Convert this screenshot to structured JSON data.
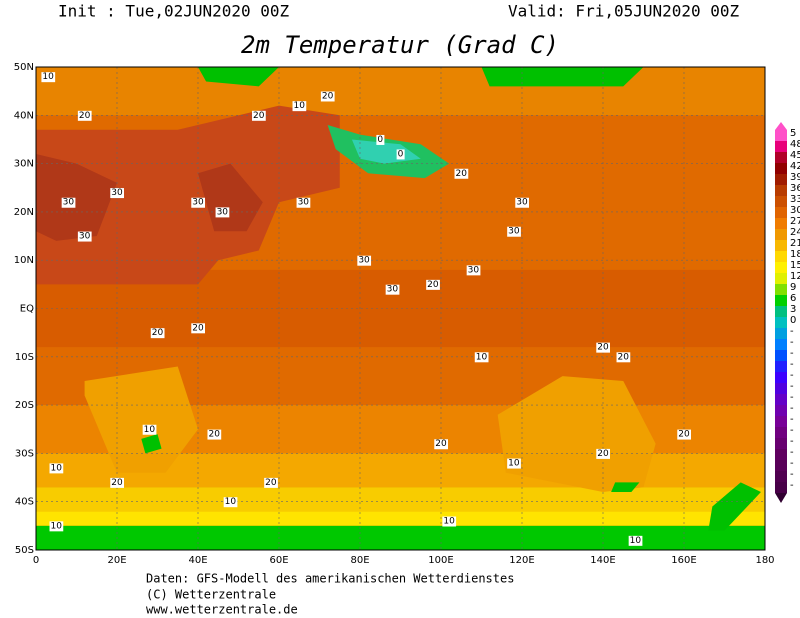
{
  "header": {
    "init": "Init : Tue,02JUN2020 00Z",
    "valid": "Valid: Fri,05JUN2020 00Z",
    "title": "2m Temperatur (Grad C)"
  },
  "map": {
    "lat_labels": [
      "50N",
      "40N",
      "30N",
      "20N",
      "10N",
      "EQ",
      "10S",
      "20S",
      "30S",
      "40S",
      "50S"
    ],
    "lon_labels": [
      "0",
      "20E",
      "40E",
      "60E",
      "80E",
      "100E",
      "120E",
      "140E",
      "160E",
      "180"
    ],
    "contour_labels": [
      "10",
      "20",
      "30",
      "30",
      "30",
      "30",
      "30",
      "20",
      "10",
      "0",
      "0",
      "20",
      "30",
      "30",
      "30",
      "30",
      "20",
      "10",
      "20",
      "20",
      "20",
      "20",
      "20",
      "20",
      "20",
      "10",
      "10",
      "10",
      "10",
      "20",
      "10",
      "10",
      "20",
      "20",
      "10",
      "30",
      "30",
      "20"
    ]
  },
  "colorbar": {
    "labels": [
      "5",
      "48",
      "45",
      "42",
      "39",
      "36",
      "33",
      "30",
      "27",
      "24",
      "21",
      "18",
      "15",
      "12",
      "9",
      "6",
      "3",
      "0",
      "-",
      "-",
      "-",
      "-",
      "-",
      "-",
      "-",
      "-",
      "-",
      "-",
      "-",
      "-",
      "-",
      "-",
      "-"
    ]
  },
  "footer": {
    "line1": "Daten: GFS-Modell des amerikanischen Wetterdienstes",
    "line2": "(C) Wetterzentrale",
    "line3": "www.wetterzentrale.de"
  }
}
